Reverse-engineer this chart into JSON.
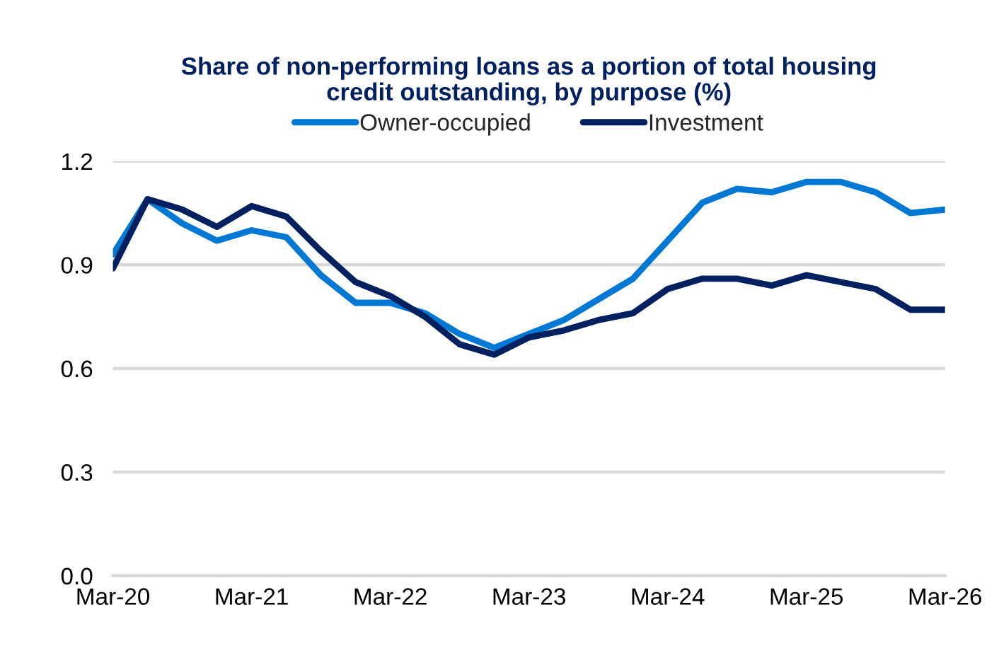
{
  "chart_data": {
    "type": "line",
    "title": "Share of non-performing loans as a portion of total housing\ncredit outstanding, by purpose (%)",
    "categories": [
      "Mar-20",
      null,
      null,
      null,
      "Mar-21",
      null,
      null,
      null,
      "Mar-22",
      null,
      null,
      null,
      "Mar-23",
      null,
      null,
      null,
      "Mar-24",
      null,
      null,
      null,
      "Mar-25",
      null,
      null,
      null,
      "Mar-26"
    ],
    "series": [
      {
        "name": "Owner-occupied",
        "color": "#0078d4",
        "values": [
          0.93,
          1.09,
          1.02,
          0.97,
          1.0,
          0.98,
          0.87,
          0.79,
          0.79,
          0.76,
          0.7,
          0.66,
          0.7,
          0.74,
          0.8,
          0.86,
          0.97,
          1.08,
          1.12,
          1.11,
          1.14,
          1.14,
          1.11,
          1.05,
          1.06
        ]
      },
      {
        "name": "Investment",
        "color": "#002060",
        "values": [
          0.89,
          1.09,
          1.06,
          1.01,
          1.07,
          1.04,
          0.94,
          0.85,
          0.81,
          0.75,
          0.67,
          0.64,
          0.69,
          0.71,
          0.74,
          0.76,
          0.83,
          0.86,
          0.86,
          0.84,
          0.87,
          0.85,
          0.83,
          0.77,
          0.77
        ]
      }
    ],
    "ylim": [
      0,
      1.2
    ],
    "yticks": [
      {
        "value": 0,
        "label": "0.0"
      },
      0.3,
      0.6,
      0.9,
      1.2
    ],
    "grid": "y",
    "legend": "top",
    "marker": "none",
    "line_style": "solid"
  }
}
